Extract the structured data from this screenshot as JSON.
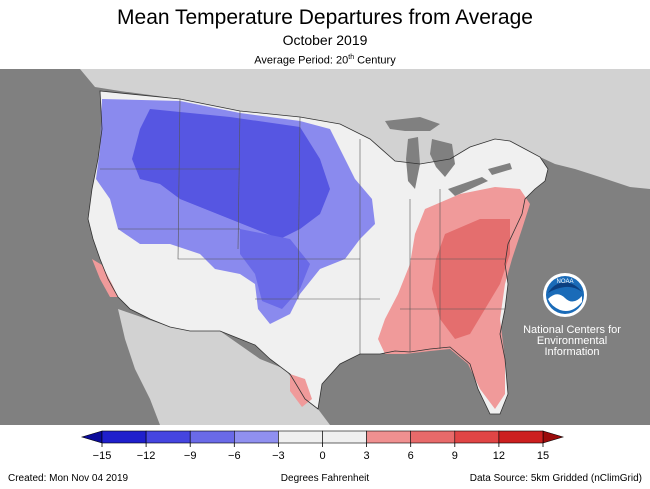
{
  "title": "Mean Temperature Departures from Average",
  "subtitle": "October 2019",
  "period": {
    "prefix": "Average Period: 20",
    "sup": "th",
    "suffix": " Century"
  },
  "agency": {
    "logo_text": "NOAA",
    "lines": [
      "National Centers for",
      "Environmental",
      "Information"
    ]
  },
  "legend": {
    "ticks": [
      "−15",
      "−12",
      "−9",
      "−6",
      "−3",
      "0",
      "3",
      "6",
      "9",
      "12",
      "15"
    ],
    "colors": [
      "#1f1fcc",
      "#4545e0",
      "#6a6ae8",
      "#9090f0",
      "#f0f0f0",
      "#f0f0f0",
      "#f09090",
      "#e86a6a",
      "#e04545",
      "#cc1f1f"
    ],
    "arrow_low_color": "#0b0b9a",
    "arrow_high_color": "#9a0b0b",
    "units": "Degrees Fahrenheit"
  },
  "footer": {
    "created": "Created: Mon Nov 04 2019",
    "source": "Data Source: 5km Gridded (nClimGrid)"
  },
  "colors": {
    "ocean": "#808080",
    "land": "#d2d2d2",
    "neutral": "#f0f0f0",
    "cold": "#6a6ae8",
    "cold_strong": "#4545e0",
    "warm": "#f09090",
    "warm_strong": "#e86a6a"
  }
}
